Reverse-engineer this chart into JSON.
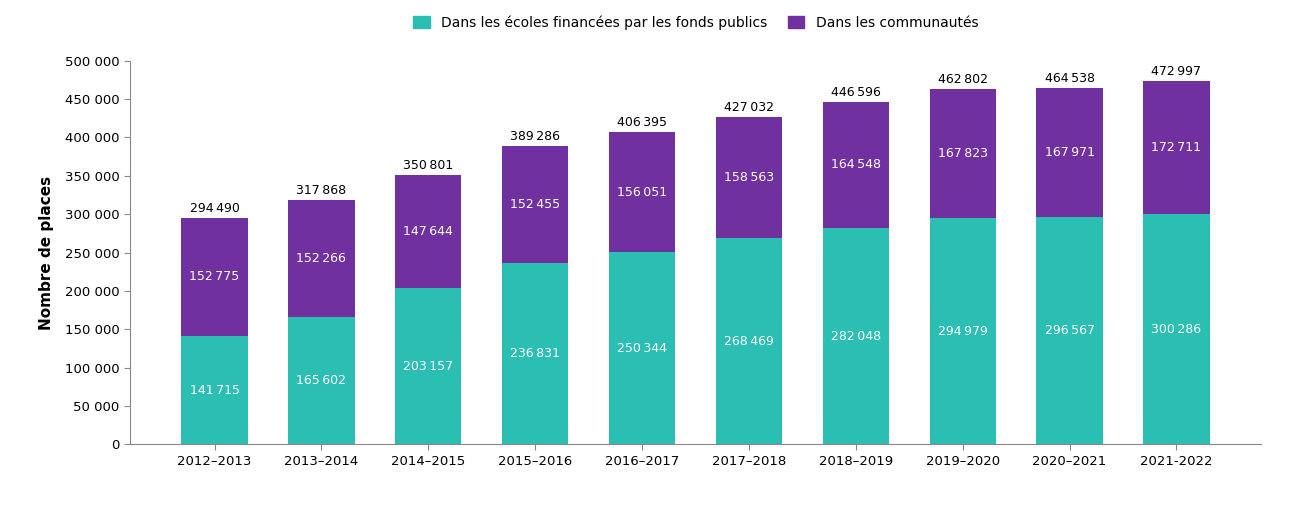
{
  "years": [
    "2012–2013",
    "2013–2014",
    "2014–2015",
    "2015–2016",
    "2016–2017",
    "2017–2018",
    "2018–2019",
    "2019–2020",
    "2020–2021",
    "2021-2022"
  ],
  "schools": [
    141715,
    165602,
    203157,
    236831,
    250344,
    268469,
    282048,
    294979,
    296567,
    300286
  ],
  "communities": [
    152775,
    152266,
    147644,
    152455,
    156051,
    158563,
    164548,
    167823,
    167971,
    172711
  ],
  "totals": [
    294490,
    317868,
    350801,
    389286,
    406395,
    427032,
    446596,
    462802,
    464538,
    472997
  ],
  "color_schools": "#2BBFB3",
  "color_communities": "#7030A0",
  "legend_schools": "Dans les écoles financées par les fonds publics",
  "legend_communities": "Dans les communautés",
  "ylabel": "Nombre de places",
  "ylim": [
    0,
    500000
  ],
  "yticks": [
    0,
    50000,
    100000,
    150000,
    200000,
    250000,
    300000,
    350000,
    400000,
    450000,
    500000
  ],
  "ytick_labels": [
    "0",
    "50 000",
    "100 000",
    "150 000",
    "200 000",
    "250 000",
    "300 000",
    "350 000",
    "400 000",
    "450 000",
    "500 000"
  ],
  "background_color": "#ffffff",
  "label_fontsize": 9.0,
  "total_fontsize": 9.0,
  "bar_width": 0.62
}
